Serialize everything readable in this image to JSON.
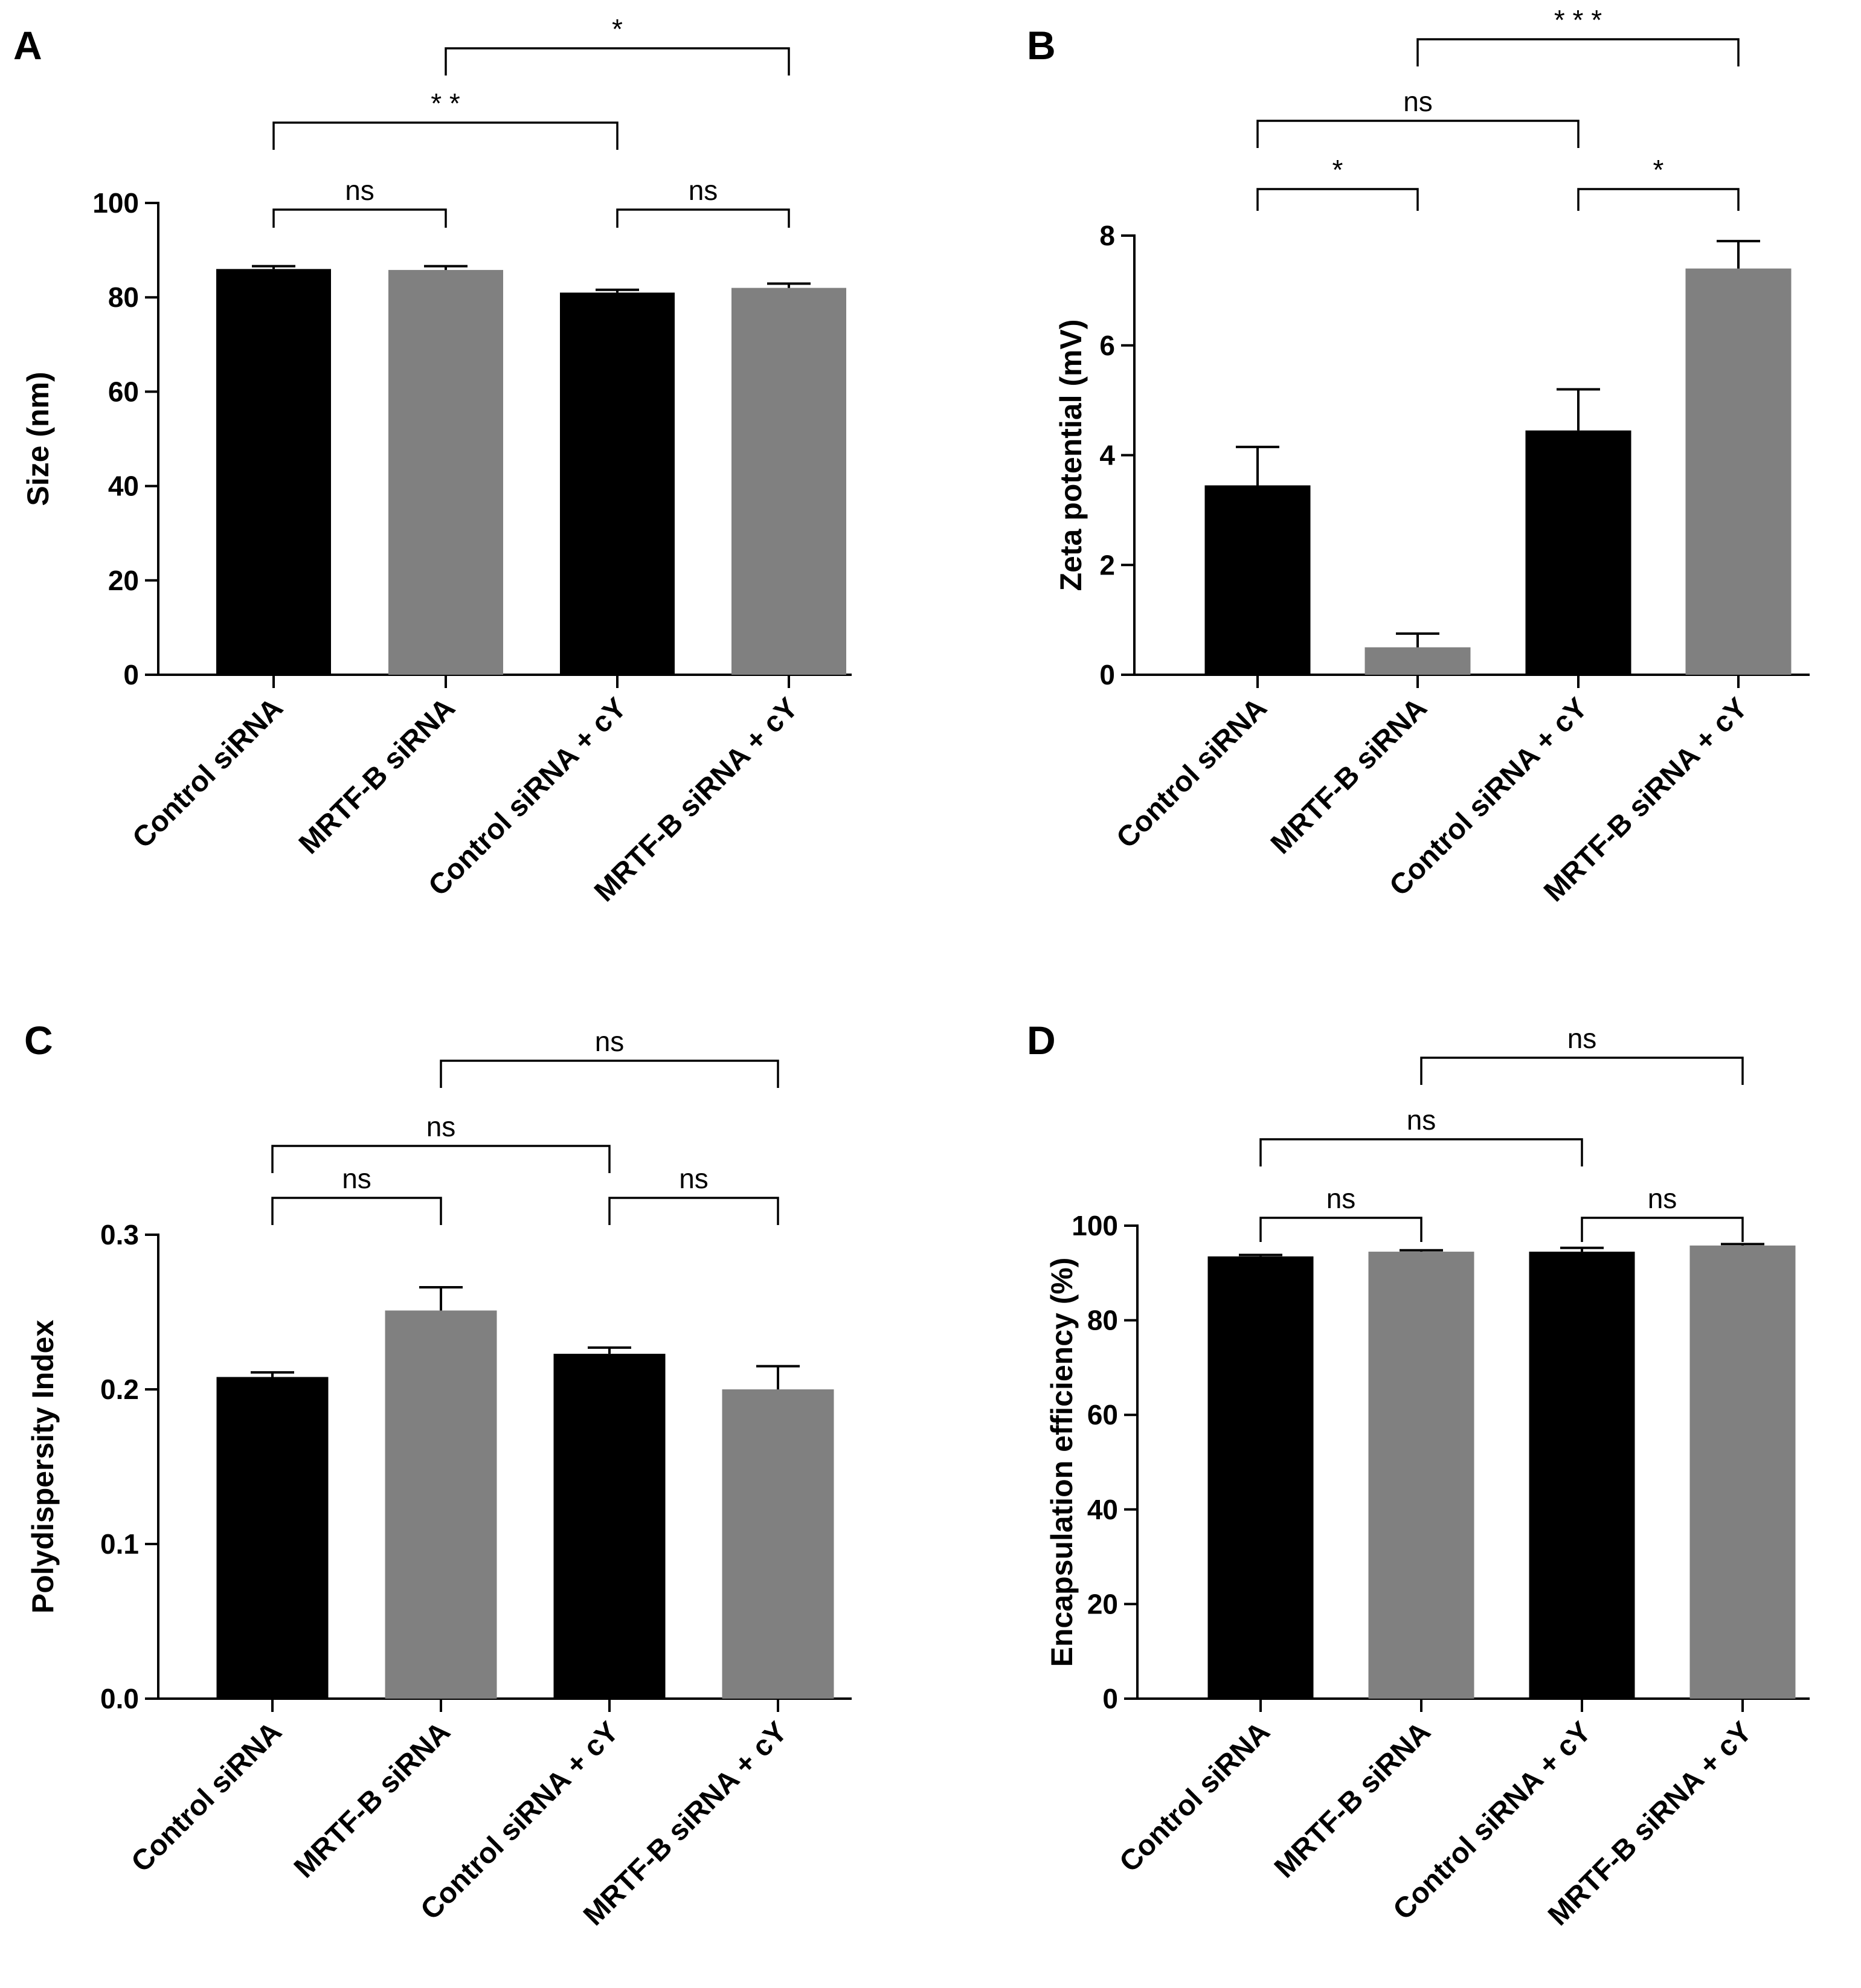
{
  "colors": {
    "black_bar": "#000000",
    "gray_bar": "#808080"
  },
  "chart_data": [
    {
      "panel": "A",
      "type": "bar",
      "ylabel": "Size (nm)",
      "ylim": [
        0,
        100
      ],
      "yticks": [
        0,
        20,
        40,
        60,
        80,
        100
      ],
      "categories": [
        "Control siRNA",
        "MRTF-B siRNA",
        "Control siRNA + cY",
        "MRTF-B siRNA + cY"
      ],
      "values": [
        86,
        85.8,
        81,
        82
      ],
      "errors": [
        0.6,
        0.8,
        0.6,
        0.9
      ],
      "bar_colors": [
        "#000000",
        "#808080",
        "#000000",
        "#808080"
      ],
      "comparisons": [
        {
          "from": 0,
          "to": 1,
          "label": "ns"
        },
        {
          "from": 2,
          "to": 3,
          "label": "ns"
        },
        {
          "from": 0,
          "to": 2,
          "label": "* *"
        },
        {
          "from": 1,
          "to": 3,
          "label": "*"
        }
      ]
    },
    {
      "panel": "B",
      "type": "bar",
      "ylabel": "Zeta potential (mV)",
      "ylim": [
        0,
        8
      ],
      "yticks": [
        0,
        2,
        4,
        6,
        8
      ],
      "categories": [
        "Control siRNA",
        "MRTF-B siRNA",
        "Control siRNA + cY",
        "MRTF-B siRNA + cY"
      ],
      "values": [
        3.45,
        0.5,
        4.45,
        7.4
      ],
      "errors": [
        0.7,
        0.25,
        0.75,
        0.5
      ],
      "bar_colors": [
        "#000000",
        "#808080",
        "#000000",
        "#808080"
      ],
      "comparisons": [
        {
          "from": 0,
          "to": 1,
          "label": "*"
        },
        {
          "from": 2,
          "to": 3,
          "label": "*"
        },
        {
          "from": 0,
          "to": 2,
          "label": "ns"
        },
        {
          "from": 1,
          "to": 3,
          "label": "* * *"
        }
      ]
    },
    {
      "panel": "C",
      "type": "bar",
      "ylabel": "Polydispersity Index",
      "ylim": [
        0,
        0.3
      ],
      "yticks": [
        "0.0",
        "0.1",
        "0.2",
        "0.3"
      ],
      "categories": [
        "Control siRNA",
        "MRTF-B siRNA",
        "Control siRNA + cY",
        "MRTF-B siRNA + cY"
      ],
      "values": [
        0.208,
        0.251,
        0.223,
        0.2
      ],
      "errors": [
        0.003,
        0.015,
        0.004,
        0.015
      ],
      "bar_colors": [
        "#000000",
        "#808080",
        "#000000",
        "#808080"
      ],
      "comparisons": [
        {
          "from": 0,
          "to": 1,
          "label": "ns"
        },
        {
          "from": 2,
          "to": 3,
          "label": "ns"
        },
        {
          "from": 0,
          "to": 2,
          "label": "ns"
        },
        {
          "from": 1,
          "to": 3,
          "label": "ns"
        }
      ]
    },
    {
      "panel": "D",
      "type": "bar",
      "ylabel": "Encapsulation efficiency (%)",
      "ylim": [
        0,
        100
      ],
      "yticks": [
        0,
        20,
        40,
        60,
        80,
        100
      ],
      "categories": [
        "Control siRNA",
        "MRTF-B siRNA",
        "Control siRNA + cY",
        "MRTF-B siRNA + cY"
      ],
      "values": [
        93.5,
        94.5,
        94.5,
        95.8
      ],
      "errors": [
        0.3,
        0.3,
        0.8,
        0.3
      ],
      "bar_colors": [
        "#000000",
        "#808080",
        "#000000",
        "#808080"
      ],
      "comparisons": [
        {
          "from": 0,
          "to": 1,
          "label": "ns"
        },
        {
          "from": 2,
          "to": 3,
          "label": "ns"
        },
        {
          "from": 0,
          "to": 2,
          "label": "ns"
        },
        {
          "from": 1,
          "to": 3,
          "label": "ns"
        }
      ]
    }
  ]
}
